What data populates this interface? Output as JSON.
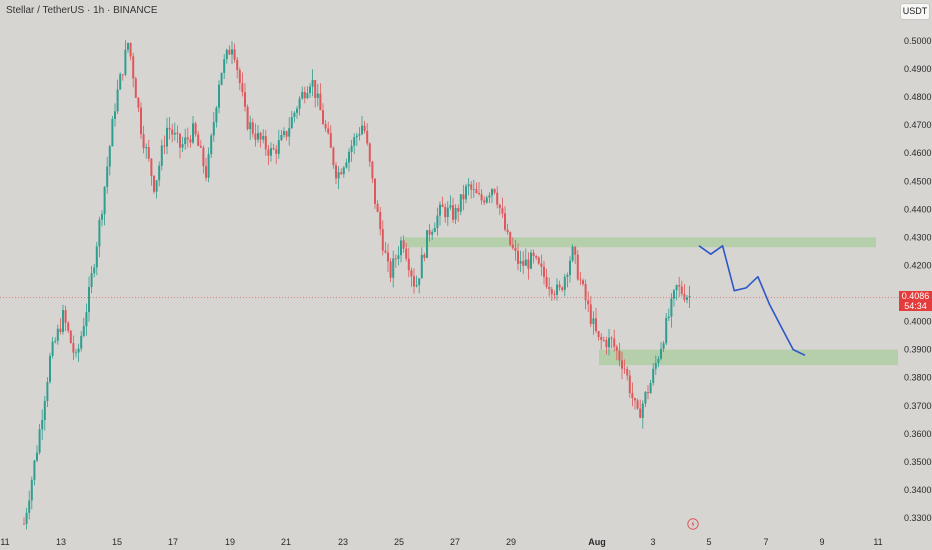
{
  "header": {
    "title": "Stellar / TetherUS · 1h · BINANCE"
  },
  "currency_button": {
    "label": "USDT"
  },
  "price_tag": {
    "price": "0.4086",
    "countdown": "54:34"
  },
  "logo": {
    "icon": "lightning-icon"
  },
  "colors": {
    "background": "#d7d5d1",
    "up": "#2e9e8f",
    "down": "#e0575b",
    "zone": "#a9cc9c",
    "projection": "#2c57c9",
    "price_line": "#e07a7a"
  },
  "chart_data": {
    "type": "candlestick",
    "title": "Stellar / TetherUS · 1h · BINANCE",
    "x_ticks": [
      "11",
      "13",
      "15",
      "17",
      "19",
      "21",
      "23",
      "25",
      "27",
      "29",
      "Aug",
      "3",
      "5",
      "7",
      "9",
      "11"
    ],
    "y_ticks": [
      "0.5000",
      "0.4900",
      "0.4800",
      "0.4700",
      "0.4600",
      "0.4500",
      "0.4400",
      "0.4300",
      "0.4200",
      "0.4000",
      "0.3900",
      "0.3800",
      "0.3700",
      "0.3600",
      "0.3500",
      "0.3400",
      "0.3300"
    ],
    "ylim": [
      0.3255,
      0.5145
    ],
    "current_price": 0.4086,
    "price_path": [
      [
        "11",
        0.328
      ],
      [
        "11",
        0.355
      ],
      [
        "12",
        0.387
      ],
      [
        "12",
        0.402
      ],
      [
        "12",
        0.386
      ],
      [
        "13",
        0.41
      ],
      [
        "13",
        0.442
      ],
      [
        "14",
        0.478
      ],
      [
        "14",
        0.5
      ],
      [
        "15",
        0.468
      ],
      [
        "15",
        0.448
      ],
      [
        "16",
        0.47
      ],
      [
        "16",
        0.462
      ],
      [
        "17",
        0.468
      ],
      [
        "17",
        0.452
      ],
      [
        "18",
        0.488
      ],
      [
        "18",
        0.5
      ],
      [
        "19",
        0.472
      ],
      [
        "19",
        0.465
      ],
      [
        "20",
        0.46
      ],
      [
        "20",
        0.466
      ],
      [
        "21",
        0.478
      ],
      [
        "21",
        0.487
      ],
      [
        "22",
        0.47
      ],
      [
        "22",
        0.452
      ],
      [
        "23",
        0.462
      ],
      [
        "23",
        0.471
      ],
      [
        "24",
        0.44
      ],
      [
        "24",
        0.416
      ],
      [
        "25",
        0.43
      ],
      [
        "25",
        0.412
      ],
      [
        "26",
        0.432
      ],
      [
        "26",
        0.44
      ],
      [
        "27",
        0.438
      ],
      [
        "27",
        0.448
      ],
      [
        "28",
        0.443
      ],
      [
        "28",
        0.449
      ],
      [
        "29",
        0.43
      ],
      [
        "29",
        0.42
      ],
      [
        "30",
        0.422
      ],
      [
        "30",
        0.415
      ],
      [
        "31",
        0.41
      ],
      [
        "31",
        0.425
      ],
      [
        "Aug",
        0.408
      ],
      [
        "Aug",
        0.393
      ],
      [
        "2",
        0.393
      ],
      [
        "2",
        0.384
      ],
      [
        "3",
        0.366
      ],
      [
        "3",
        0.378
      ],
      [
        "4",
        0.395
      ],
      [
        "4",
        0.412
      ],
      [
        "4",
        0.409
      ]
    ],
    "zones": [
      {
        "name": "resistance",
        "from_x": "25",
        "to_x": "11",
        "y_low": 0.4265,
        "y_high": 0.43
      },
      {
        "name": "support",
        "from_x": "Aug",
        "to_x": "11",
        "y_low": 0.3845,
        "y_high": 0.39
      }
    ],
    "projection": [
      [
        "5",
        0.427
      ],
      [
        "5",
        0.424
      ],
      [
        "6",
        0.427
      ],
      [
        "6",
        0.411
      ],
      [
        "7",
        0.412
      ],
      [
        "7",
        0.416
      ],
      [
        "8",
        0.406
      ],
      [
        "8",
        0.398
      ],
      [
        "8",
        0.39
      ],
      [
        "8",
        0.388
      ]
    ]
  }
}
